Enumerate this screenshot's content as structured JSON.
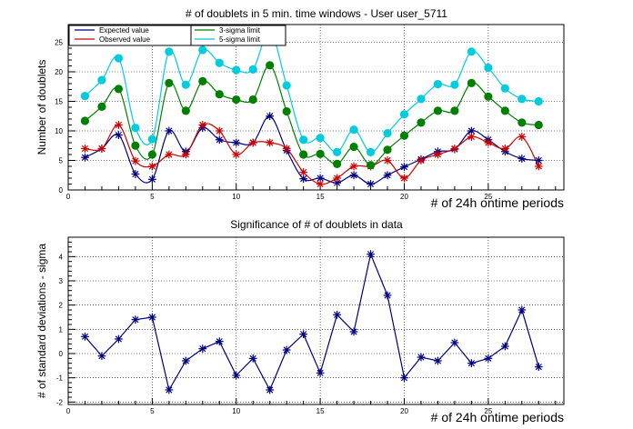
{
  "chart_data": [
    {
      "type": "line",
      "title": "# of doublets in 5 min. time windows - User user_5711",
      "xlabel": "# of 24h ontime periods",
      "ylabel": "Number of doublets",
      "xlim": [
        0,
        29.5
      ],
      "ylim": [
        0,
        28
      ],
      "xticks": [
        0,
        5,
        10,
        15,
        20,
        25
      ],
      "yticks": [
        0,
        5,
        10,
        15,
        20,
        25
      ],
      "grid": true,
      "legend_position": "top-left",
      "x": [
        1,
        2,
        3,
        4,
        5,
        6,
        7,
        8,
        9,
        10,
        11,
        12,
        13,
        14,
        15,
        16,
        17,
        18,
        19,
        20,
        21,
        22,
        23,
        24,
        25,
        26,
        27,
        28
      ],
      "series": [
        {
          "name": "Expected value",
          "color": "#000080",
          "marker": "asterisk",
          "values": [
            5.5,
            7.0,
            9.3,
            2.7,
            1.8,
            10.0,
            6.5,
            10.5,
            8.5,
            8.0,
            8.0,
            12.5,
            6.7,
            1.9,
            2.0,
            1.2,
            2.5,
            1.0,
            2.5,
            3.9,
            5.2,
            6.5,
            6.9,
            10.0,
            8.5,
            6.5,
            5.3,
            5.0
          ]
        },
        {
          "name": "Observed value",
          "color": "#cc0000",
          "marker": "asterisk",
          "values": [
            7.0,
            7.0,
            11.0,
            4.9,
            4.0,
            6.0,
            6.0,
            11.0,
            10.0,
            6.0,
            8.0,
            8.0,
            7.0,
            3.0,
            1.0,
            2.0,
            4.0,
            4.0,
            5.0,
            2.0,
            5.0,
            6.0,
            7.0,
            9.0,
            8.0,
            7.0,
            9.0,
            4.0
          ]
        },
        {
          "name": "3-sigma limit",
          "color": "#008000",
          "marker": "circle",
          "values": [
            11.7,
            14.1,
            17.1,
            7.5,
            6.0,
            18.1,
            13.4,
            18.4,
            16.2,
            15.3,
            15.3,
            21.1,
            13.3,
            6.0,
            6.1,
            4.4,
            7.3,
            4.2,
            6.8,
            9.2,
            11.4,
            13.4,
            13.4,
            18.1,
            15.8,
            13.4,
            11.4,
            11.0
          ]
        },
        {
          "name": "5-sigma limit",
          "color": "#00ccdd",
          "marker": "circle",
          "values": [
            15.9,
            18.6,
            22.3,
            10.5,
            8.6,
            23.4,
            17.8,
            23.7,
            21.5,
            20.3,
            20.4,
            26.9,
            17.7,
            8.5,
            8.8,
            6.4,
            10.2,
            6.4,
            9.6,
            12.8,
            15.4,
            17.9,
            17.8,
            23.4,
            20.7,
            17.2,
            15.4,
            15.0
          ]
        }
      ]
    },
    {
      "type": "line",
      "title": "Significance of # of doublets in data",
      "xlabel": "# of 24h ontime periods",
      "ylabel": "# of standard deviations - sigma",
      "xlim": [
        0,
        29.5
      ],
      "ylim": [
        -2.1,
        4.8
      ],
      "xticks": [
        0,
        5,
        10,
        15,
        20,
        25
      ],
      "yticks": [
        -2,
        -1,
        0,
        1,
        2,
        3,
        4
      ],
      "grid": true,
      "x": [
        1,
        2,
        3,
        4,
        5,
        6,
        7,
        8,
        9,
        10,
        11,
        12,
        13,
        14,
        15,
        16,
        17,
        18,
        19,
        20,
        21,
        22,
        23,
        24,
        25,
        26,
        27,
        28
      ],
      "series": [
        {
          "color": "#000080",
          "marker": "asterisk",
          "values": [
            0.7,
            -0.1,
            0.6,
            1.4,
            1.5,
            -1.5,
            -0.3,
            0.2,
            0.5,
            -0.9,
            -0.2,
            -1.5,
            0.15,
            0.8,
            -0.8,
            1.6,
            0.9,
            4.1,
            2.4,
            -1.0,
            -0.15,
            -0.3,
            0.45,
            -0.4,
            -0.2,
            0.3,
            1.8,
            -0.55
          ]
        }
      ]
    }
  ]
}
